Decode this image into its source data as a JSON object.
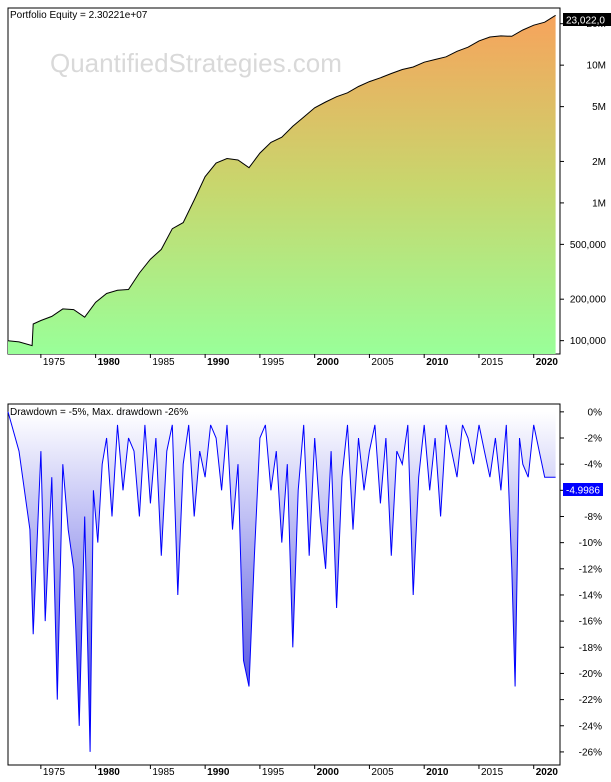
{
  "watermark": "QuantifiedStrategies.com",
  "colors": {
    "equity_top": "#f7a35c",
    "equity_mid": "#c8d66d",
    "equity_bottom": "#99ff99",
    "equity_line": "#000000",
    "drawdown_line": "#0000ff",
    "drawdown_fill_top": "#ffffff",
    "drawdown_fill_bottom": "#3333dd",
    "value_box": "#000000",
    "dd_value_box": "#0000ff",
    "axis": "#000000",
    "watermark": "#d9d9d9"
  },
  "chart_data": [
    {
      "type": "area",
      "title": "Portfolio Equity = 2.30221e+07",
      "y_scale": "log",
      "ylim": [
        80000,
        26000000
      ],
      "xlim": [
        1972.0,
        2022.4
      ],
      "last_value_label": "23,022,0",
      "x_ticks": [
        {
          "label": "1975",
          "value": 1975,
          "bold": false
        },
        {
          "label": "1980",
          "value": 1980,
          "bold": true
        },
        {
          "label": "1985",
          "value": 1985,
          "bold": false
        },
        {
          "label": "1990",
          "value": 1990,
          "bold": true
        },
        {
          "label": "1995",
          "value": 1995,
          "bold": false
        },
        {
          "label": "2000",
          "value": 2000,
          "bold": true
        },
        {
          "label": "2005",
          "value": 2005,
          "bold": false
        },
        {
          "label": "2010",
          "value": 2010,
          "bold": true
        },
        {
          "label": "2015",
          "value": 2015,
          "bold": false
        },
        {
          "label": "2020",
          "value": 2020,
          "bold": true
        }
      ],
      "y_ticks": [
        {
          "label": "20M",
          "value": 20000000
        },
        {
          "label": "10M",
          "value": 10000000
        },
        {
          "label": "5M",
          "value": 5000000
        },
        {
          "label": "2M",
          "value": 2000000
        },
        {
          "label": "1M",
          "value": 1000000
        },
        {
          "label": "500,000",
          "value": 500000
        },
        {
          "label": "200,000",
          "value": 200000
        },
        {
          "label": "100,000",
          "value": 100000
        }
      ],
      "series": [
        {
          "x": [
            1972.0,
            1973.0,
            1974.2,
            1974.3,
            1975.0,
            1976.0,
            1977.0,
            1978.0,
            1979.0,
            1980.0,
            1981.0,
            1982.0,
            1983.0,
            1984.0,
            1985.0,
            1986.0,
            1987.0,
            1988.0,
            1989.0,
            1990.0,
            1991.0,
            1992.0,
            1993.0,
            1994.0,
            1995.0,
            1996.0,
            1997.0,
            1998.0,
            1999.0,
            2000.0,
            2001.0,
            2002.0,
            2003.0,
            2004.0,
            2005.0,
            2006.0,
            2007.0,
            2008.0,
            2009.0,
            2010.0,
            2011.0,
            2012.0,
            2013.0,
            2014.0,
            2015.0,
            2016.0,
            2017.0,
            2018.0,
            2019.0,
            2020.0,
            2021.0,
            2022.0
          ],
          "values": [
            100000,
            98000,
            92000,
            132000,
            140000,
            150000,
            170000,
            168000,
            148000,
            190000,
            220000,
            232000,
            235000,
            310000,
            390000,
            460000,
            650000,
            720000,
            1050000,
            1550000,
            1950000,
            2100000,
            2050000,
            1800000,
            2300000,
            2750000,
            3000000,
            3600000,
            4200000,
            4900000,
            5400000,
            5900000,
            6300000,
            7000000,
            7600000,
            8100000,
            8700000,
            9300000,
            9700000,
            10500000,
            11000000,
            11500000,
            12600000,
            13500000,
            15000000,
            16000000,
            16300000,
            16200000,
            18000000,
            19500000,
            20500000,
            23022000
          ]
        }
      ]
    },
    {
      "type": "area",
      "title": "Drawdown = -5%, Max. drawdown -26%",
      "ylim": [
        -27,
        0.6
      ],
      "xlim": [
        1972.0,
        2022.4
      ],
      "last_value_label": "-4.9986",
      "x_ticks": [
        {
          "label": "1975",
          "value": 1975,
          "bold": false
        },
        {
          "label": "1980",
          "value": 1980,
          "bold": true
        },
        {
          "label": "1985",
          "value": 1985,
          "bold": false
        },
        {
          "label": "1990",
          "value": 1990,
          "bold": true
        },
        {
          "label": "1995",
          "value": 1995,
          "bold": false
        },
        {
          "label": "2000",
          "value": 2000,
          "bold": true
        },
        {
          "label": "2005",
          "value": 2005,
          "bold": false
        },
        {
          "label": "2010",
          "value": 2010,
          "bold": true
        },
        {
          "label": "2015",
          "value": 2015,
          "bold": false
        },
        {
          "label": "2020",
          "value": 2020,
          "bold": true
        }
      ],
      "y_ticks": [
        {
          "label": "0%",
          "value": 0
        },
        {
          "label": "-2%",
          "value": -2
        },
        {
          "label": "-4%",
          "value": -4
        },
        {
          "label": "-6%",
          "value": -6
        },
        {
          "label": "-8%",
          "value": -8
        },
        {
          "label": "-10%",
          "value": -10
        },
        {
          "label": "-12%",
          "value": -12
        },
        {
          "label": "-14%",
          "value": -14
        },
        {
          "label": "-16%",
          "value": -16
        },
        {
          "label": "-18%",
          "value": -18
        },
        {
          "label": "-20%",
          "value": -20
        },
        {
          "label": "-22%",
          "value": -22
        },
        {
          "label": "-24%",
          "value": -24
        },
        {
          "label": "-26%",
          "value": -26
        }
      ],
      "series": [
        {
          "x": [
            1972.0,
            1973.0,
            1974.0,
            1974.3,
            1975.0,
            1975.4,
            1976.0,
            1976.5,
            1977.0,
            1977.5,
            1978.0,
            1978.5,
            1979.0,
            1979.5,
            1979.8,
            1980.2,
            1980.6,
            1981.0,
            1981.5,
            1982.0,
            1982.5,
            1983.0,
            1983.5,
            1984.0,
            1984.5,
            1985.0,
            1985.5,
            1986.0,
            1986.5,
            1987.0,
            1987.5,
            1988.0,
            1988.5,
            1989.0,
            1989.5,
            1990.0,
            1990.5,
            1991.0,
            1991.5,
            1992.0,
            1992.5,
            1993.0,
            1993.5,
            1994.0,
            1994.5,
            1995.0,
            1995.5,
            1996.0,
            1996.5,
            1997.0,
            1997.5,
            1998.0,
            1998.5,
            1999.0,
            1999.5,
            2000.0,
            2000.5,
            2001.0,
            2001.5,
            2002.0,
            2002.5,
            2003.0,
            2003.5,
            2004.0,
            2004.5,
            2005.0,
            2005.5,
            2006.0,
            2006.5,
            2007.0,
            2007.5,
            2008.0,
            2008.5,
            2009.0,
            2009.5,
            2010.0,
            2010.5,
            2011.0,
            2011.5,
            2012.0,
            2012.5,
            2013.0,
            2013.5,
            2014.0,
            2014.5,
            2015.0,
            2015.5,
            2016.0,
            2016.5,
            2017.0,
            2017.5,
            2018.0,
            2018.3,
            2018.7,
            2019.0,
            2019.5,
            2020.0,
            2020.5,
            2021.0,
            2021.5,
            2022.0
          ],
          "values": [
            0,
            -3,
            -9,
            -17,
            -3,
            -16,
            -5,
            -22,
            -4,
            -9,
            -12,
            -24,
            -8,
            -26,
            -6,
            -10,
            -4,
            -2,
            -8,
            -1,
            -6,
            -2,
            -3,
            -8,
            -1,
            -7,
            -2,
            -11,
            -3,
            -1,
            -14,
            -4,
            -1,
            -8,
            -3,
            -5,
            -1,
            -2,
            -6,
            -1,
            -9,
            -4,
            -19,
            -21,
            -11,
            -2,
            -1,
            -6,
            -3,
            -10,
            -4,
            -18,
            -6,
            -1,
            -11,
            -2,
            -8,
            -12,
            -3,
            -15,
            -5,
            -1,
            -9,
            -2,
            -6,
            -3,
            -1,
            -7,
            -2,
            -11,
            -3,
            -4,
            -1,
            -14,
            -5,
            -1,
            -6,
            -2,
            -8,
            -1,
            -3,
            -5,
            -1,
            -2,
            -4,
            -1,
            -3,
            -5,
            -2,
            -6,
            -1,
            -12,
            -21,
            -2,
            -4,
            -5,
            -1,
            -3,
            -5,
            -5,
            -4.9986
          ]
        }
      ]
    }
  ]
}
